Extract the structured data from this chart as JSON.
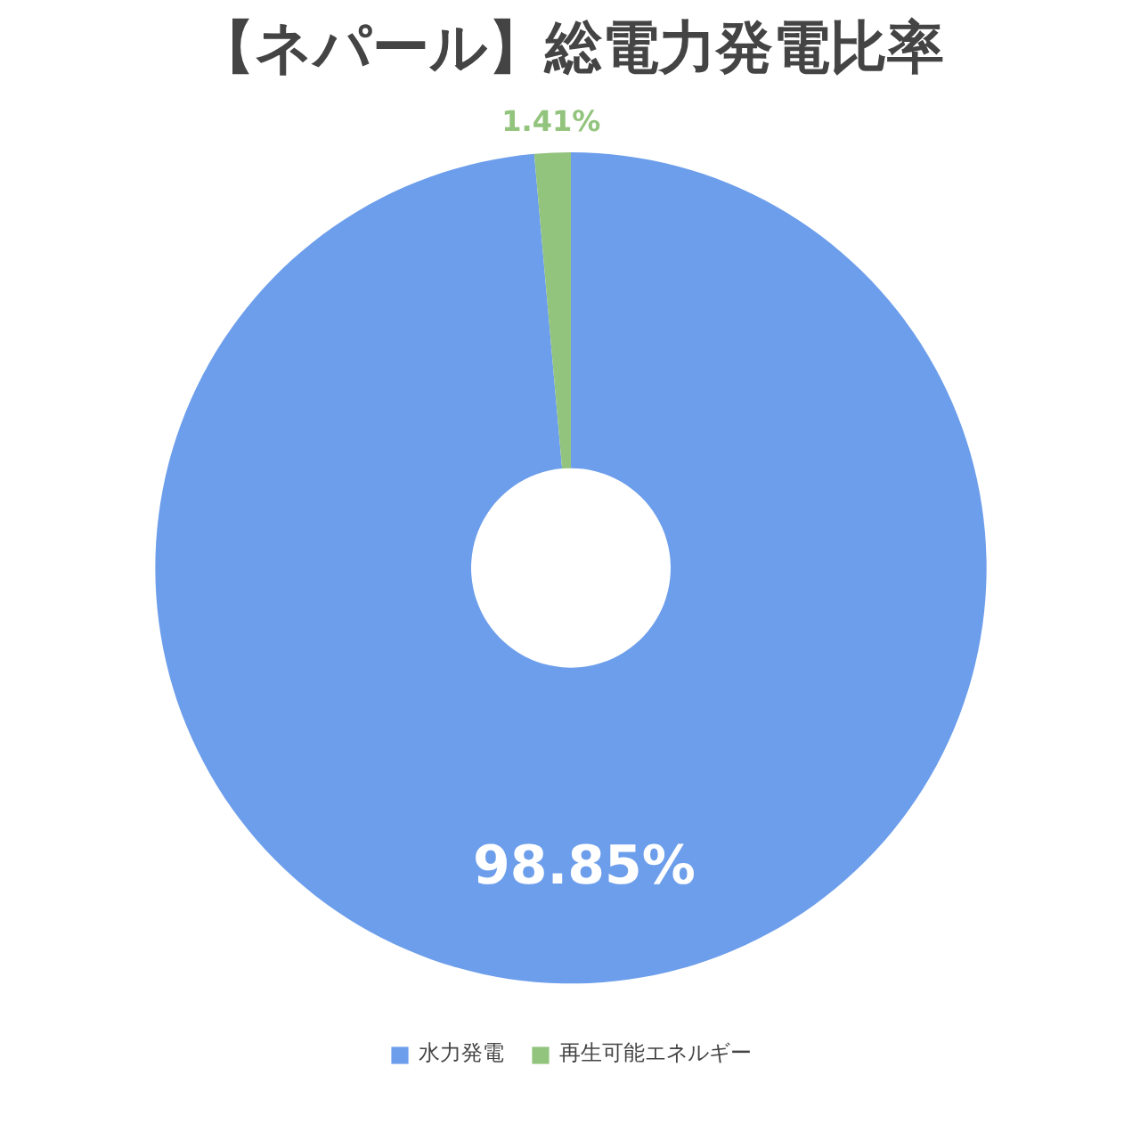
{
  "chart_data": {
    "type": "donut",
    "title": "【ネパール】総電力発電比率",
    "categories": [
      "水力発電",
      "再生可能エネルギー"
    ],
    "values": [
      98.85,
      1.41
    ],
    "value_labels": [
      "98.85%",
      "1.41%"
    ],
    "colors": [
      "#6d9eeb",
      "#93c47d"
    ],
    "data_labels": true,
    "legend": "bottom"
  }
}
